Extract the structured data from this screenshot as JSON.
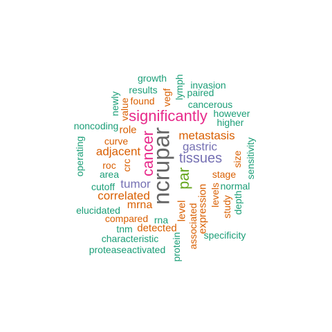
{
  "colors": {
    "teal": "#1b9e77",
    "orange": "#d95f02",
    "purple": "#7570b3",
    "pink": "#e7298a",
    "green": "#66a61e",
    "gray": "#666666",
    "background": "#ffffff"
  },
  "words": {
    "ncrupar": "ncrupar",
    "significantly": "significantly",
    "cancer": "cancer",
    "par": "par",
    "tissues": "tissues",
    "gastric": "gastric",
    "metastasis": "metastasis",
    "tumor": "tumor",
    "correlated": "correlated",
    "adjacent": "adjacent",
    "mrna": "mrna",
    "growth": "growth",
    "lymph": "lymph",
    "invasion": "invasion",
    "results": "results",
    "vegf": "vegf",
    "paired": "paired",
    "newly": "newly",
    "found": "found",
    "cancerous": "cancerous",
    "value": "value",
    "however": "however",
    "noncoding": "noncoding",
    "higher": "higher",
    "role": "role",
    "curve": "curve",
    "operating": "operating",
    "sensitivity": "sensitivity",
    "roc": "roc",
    "crc": "crc",
    "size": "size",
    "stage": "stage",
    "area": "area",
    "normal": "normal",
    "cutoff": "cutoff",
    "levels": "levels",
    "elucidated": "elucidated",
    "depth": "depth",
    "level": "level",
    "expression": "expression",
    "study": "study",
    "compared": "compared",
    "rna": "rna",
    "tnm": "tnm",
    "detected": "detected",
    "associated": "associated",
    "specificity": "specificity",
    "characteristic": "characteristic",
    "protein": "protein",
    "proteaseactivated": "proteaseactivated"
  }
}
